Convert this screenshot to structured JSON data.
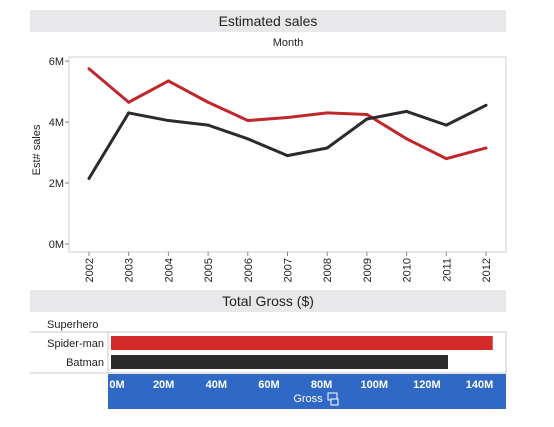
{
  "chart_data": [
    {
      "type": "line",
      "title": "Estimated sales",
      "subtitle": "Month",
      "xlabel": "",
      "ylabel": "Est# sales",
      "x": [
        "2002",
        "2003",
        "2004",
        "2005",
        "2006",
        "2007",
        "2008",
        "2009",
        "2010",
        "2011",
        "2012"
      ],
      "ylim": [
        0,
        6.2
      ],
      "yticks": [
        "0M",
        "2M",
        "4M",
        "6M"
      ],
      "ytick_values": [
        0,
        2,
        4,
        6
      ],
      "grid": false,
      "series": [
        {
          "color": "#c0272d",
          "values": [
            5.75,
            4.65,
            5.35,
            4.65,
            4.05,
            4.15,
            4.3,
            4.25,
            3.45,
            2.8,
            3.15
          ]
        },
        {
          "color": "#2b2b2b",
          "values": [
            2.15,
            4.3,
            4.05,
            3.9,
            3.45,
            2.9,
            3.15,
            4.1,
            4.35,
            3.9,
            4.55
          ]
        }
      ]
    },
    {
      "type": "bar",
      "orientation": "horizontal",
      "title": "Total Gross ($)",
      "category_header": "Superhero",
      "xlabel": "Gross",
      "categories": [
        "Spider-man",
        "Batman"
      ],
      "values": [
        145,
        128
      ],
      "colors": [
        "#d42a2a",
        "#2b2b2b"
      ],
      "xlim": [
        0,
        147
      ],
      "xticks": [
        "0M",
        "20M",
        "40M",
        "60M",
        "80M",
        "100M",
        "120M",
        "140M"
      ],
      "xtick_values": [
        0,
        20,
        40,
        60,
        80,
        100,
        120,
        140
      ],
      "axis_band_color": "#2f68c5"
    }
  ]
}
